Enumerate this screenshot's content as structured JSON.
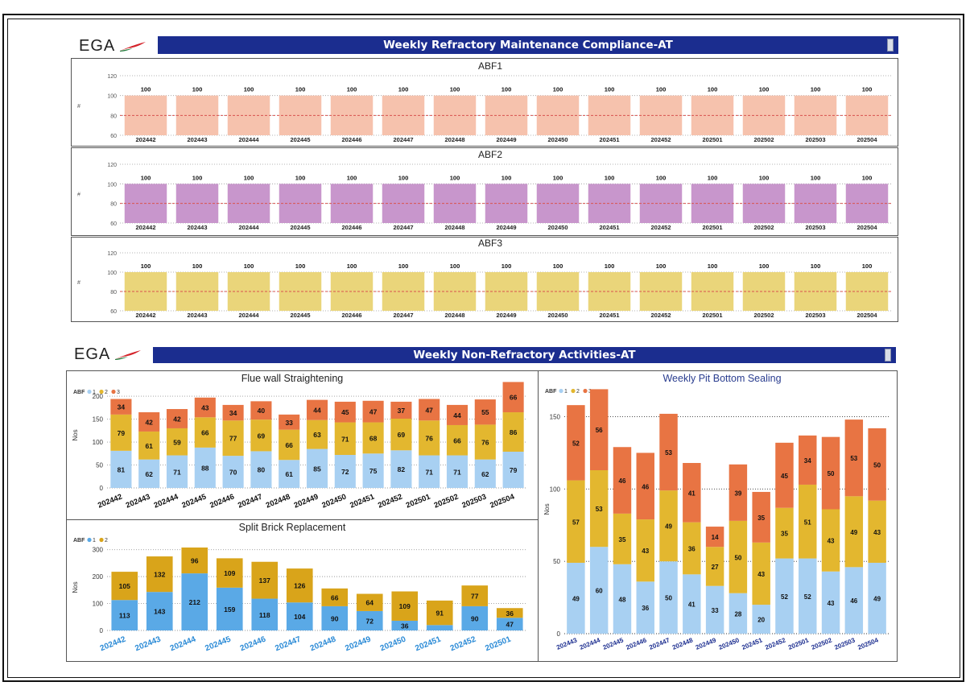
{
  "header1": {
    "logo_text": "EGA",
    "title": "Weekly Refractory Maintenance Compliance-AT"
  },
  "header2": {
    "logo_text": "EGA",
    "title": "Weekly Non-Refractory Activities-AT"
  },
  "colors": {
    "abf1_bar": "#f6c2ad",
    "abf2_bar": "#c896cc",
    "abf3_bar": "#ead57a",
    "target_line": "#d9534f",
    "abf_series1": "#a8d0f2",
    "abf_series2": "#e3b72f",
    "abf_series3": "#e87443",
    "split_series1": "#5aa9e6",
    "split_series2": "#d9a41a",
    "banner": "#1b2d8f"
  },
  "chart_data": [
    {
      "id": "abf1",
      "type": "bar",
      "title": "ABF1",
      "ylabel": "#",
      "ylim": [
        60,
        120
      ],
      "yticks": [
        60,
        80,
        100,
        120
      ],
      "target": 80,
      "categories": [
        "202442",
        "202443",
        "202444",
        "202445",
        "202446",
        "202447",
        "202448",
        "202449",
        "202450",
        "202451",
        "202452",
        "202501",
        "202502",
        "202503",
        "202504"
      ],
      "values": [
        100,
        100,
        100,
        100,
        100,
        100,
        100,
        100,
        100,
        100,
        100,
        100,
        100,
        100,
        100
      ]
    },
    {
      "id": "abf2",
      "type": "bar",
      "title": "ABF2",
      "ylabel": "#",
      "ylim": [
        60,
        120
      ],
      "yticks": [
        60,
        80,
        100,
        120
      ],
      "target": 80,
      "categories": [
        "202442",
        "202443",
        "202444",
        "202445",
        "202446",
        "202447",
        "202448",
        "202449",
        "202450",
        "202451",
        "202452",
        "202501",
        "202502",
        "202503",
        "202504"
      ],
      "values": [
        100,
        100,
        100,
        100,
        100,
        100,
        100,
        100,
        100,
        100,
        100,
        100,
        100,
        100,
        100
      ]
    },
    {
      "id": "abf3",
      "type": "bar",
      "title": "ABF3",
      "ylabel": "#",
      "ylim": [
        60,
        120
      ],
      "yticks": [
        60,
        80,
        100,
        120
      ],
      "target": 80,
      "categories": [
        "202442",
        "202443",
        "202444",
        "202445",
        "202446",
        "202447",
        "202448",
        "202449",
        "202450",
        "202451",
        "202452",
        "202501",
        "202502",
        "202503",
        "202504"
      ],
      "values": [
        100,
        100,
        100,
        100,
        100,
        100,
        100,
        100,
        100,
        100,
        100,
        100,
        100,
        100,
        100
      ]
    },
    {
      "id": "flue",
      "type": "bar",
      "stacked": true,
      "title": "Flue wall Straightening",
      "ylabel": "Nos",
      "ylim": [
        0,
        230
      ],
      "yticks": [
        0,
        50,
        100,
        150,
        200
      ],
      "legend_title": "ABF",
      "categories": [
        "202442",
        "202443",
        "202444",
        "202445",
        "202446",
        "202447",
        "202448",
        "202449",
        "202450",
        "202451",
        "202452",
        "202501",
        "202502",
        "202503",
        "202504"
      ],
      "series": [
        {
          "name": "1",
          "values": [
            81,
            62,
            71,
            88,
            70,
            80,
            61,
            85,
            72,
            75,
            82,
            71,
            71,
            62,
            79
          ]
        },
        {
          "name": "2",
          "values": [
            79,
            61,
            59,
            66,
            77,
            69,
            66,
            63,
            71,
            68,
            69,
            76,
            66,
            76,
            86
          ]
        },
        {
          "name": "3",
          "values": [
            34,
            42,
            42,
            43,
            34,
            40,
            33,
            44,
            45,
            47,
            37,
            47,
            44,
            55,
            66
          ]
        }
      ]
    },
    {
      "id": "split",
      "type": "bar",
      "stacked": true,
      "title": "Split Brick Replacement",
      "ylabel": "Nos",
      "ylim": [
        0,
        320
      ],
      "yticks": [
        0,
        100,
        200,
        300
      ],
      "legend_title": "ABF",
      "categories": [
        "202442",
        "202443",
        "202444",
        "202445",
        "202446",
        "202447",
        "202448",
        "202449",
        "202450",
        "202451",
        "202452",
        "202501"
      ],
      "series": [
        {
          "name": "1",
          "values": [
            113,
            143,
            212,
            159,
            118,
            104,
            90,
            72,
            36,
            20,
            90,
            47
          ]
        },
        {
          "name": "2",
          "values": [
            105,
            132,
            96,
            109,
            137,
            126,
            66,
            64,
            109,
            91,
            77,
            36
          ]
        }
      ],
      "labels": [
        {
          "name": "1",
          "values": [
            "113",
            "143",
            "212",
            "159",
            "118",
            "104",
            "90",
            "72",
            "36",
            "",
            "90",
            "47"
          ]
        },
        {
          "name": "2",
          "values": [
            "105",
            "132",
            "96",
            "109",
            "137",
            "126",
            "66",
            "64",
            "109",
            "91",
            "77",
            "36"
          ]
        }
      ]
    },
    {
      "id": "pit",
      "type": "bar",
      "stacked": true,
      "title": "Weekly Pit Bottom Sealing",
      "ylabel": "Nos",
      "ylim": [
        0,
        172
      ],
      "yticks": [
        0,
        50,
        100,
        150
      ],
      "legend_title": "ABF",
      "categories": [
        "202443",
        "202444",
        "202445",
        "202446",
        "202447",
        "202448",
        "202449",
        "202450",
        "202451",
        "202452",
        "202501",
        "202502",
        "202503",
        "202504"
      ],
      "series": [
        {
          "name": "1",
          "values": [
            49,
            60,
            48,
            36,
            50,
            41,
            33,
            28,
            20,
            52,
            52,
            43,
            46,
            49
          ]
        },
        {
          "name": "2",
          "values": [
            57,
            53,
            35,
            43,
            49,
            36,
            27,
            50,
            43,
            35,
            51,
            43,
            49,
            43
          ]
        },
        {
          "name": "3",
          "values": [
            52,
            56,
            46,
            46,
            53,
            41,
            14,
            39,
            35,
            45,
            34,
            50,
            53,
            50
          ]
        }
      ]
    }
  ]
}
